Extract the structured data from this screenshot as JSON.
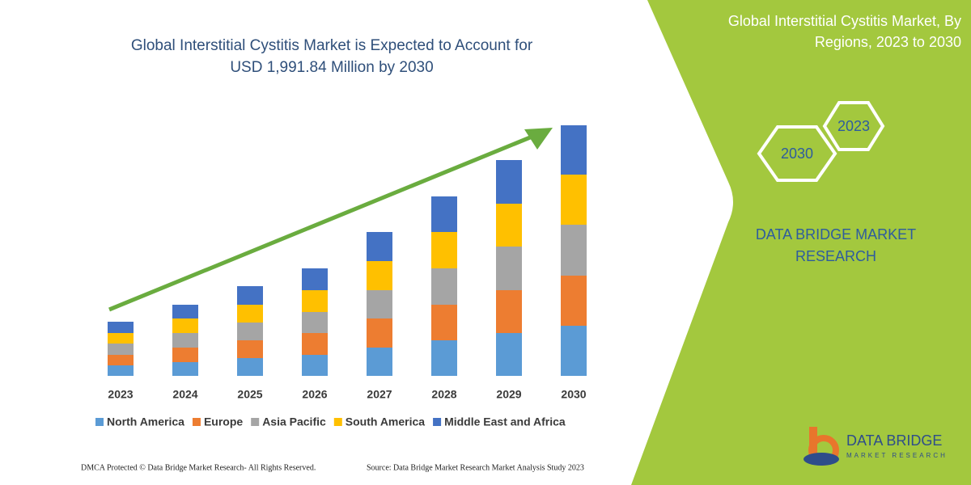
{
  "chart_data": {
    "type": "bar",
    "stacked": true,
    "title_lines": [
      "Global Interstitial Cystitis Market is Expected to Account for",
      "USD 1,991.84 Million by 2030"
    ],
    "categories": [
      "2023",
      "2024",
      "2025",
      "2026",
      "2027",
      "2028",
      "2029",
      "2030"
    ],
    "series": [
      {
        "name": "North America",
        "color": "#5b9bd5",
        "values": [
          13,
          17,
          22,
          26,
          35,
          44,
          53,
          62
        ]
      },
      {
        "name": "Europe",
        "color": "#ed7d31",
        "values": [
          13,
          18,
          22,
          27,
          36,
          44,
          53,
          62
        ]
      },
      {
        "name": "Asia Pacific",
        "color": "#a5a5a5",
        "values": [
          14,
          18,
          22,
          26,
          35,
          45,
          54,
          63
        ]
      },
      {
        "name": "South America",
        "color": "#ffc000",
        "values": [
          13,
          18,
          22,
          27,
          36,
          45,
          53,
          62
        ]
      },
      {
        "name": "Middle East and Africa",
        "color": "#4472c4",
        "values": [
          14,
          17,
          23,
          27,
          36,
          44,
          54,
          61
        ]
      }
    ]
  },
  "panel": {
    "heading_lines": [
      "Global Interstitial Cystitis Market, By",
      "Regions, 2023 to 2030"
    ],
    "hex_start": "2023",
    "hex_end": "2030",
    "brand_lines": [
      "DATA BRIDGE MARKET",
      "RESEARCH"
    ],
    "logo_name": "DATA BRIDGE",
    "logo_sub": "MARKET RESEARCH"
  },
  "footer": {
    "notice": "DMCA Protected © Data Bridge Market Research-  All Rights Reserved.",
    "source": "Source: Data Bridge Market Research  Market Analysis Study 2023"
  }
}
